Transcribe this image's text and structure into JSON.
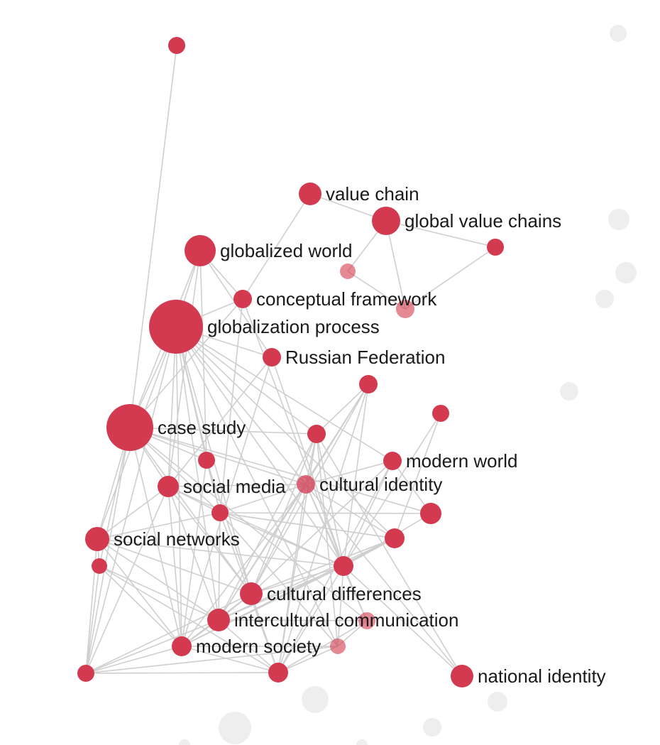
{
  "colors": {
    "node": "#d33a4f",
    "edge": "#cfcfcf",
    "ghost": "#eeeeee",
    "label": "#1a1a1a"
  },
  "nodes": {
    "value_chain": "value chain",
    "global_value_chains": "global value chains",
    "globalized_world": "globalized world",
    "conceptual_framework": "conceptual framework",
    "globalization_process": "globalization process",
    "russian_federation": "Russian Federation",
    "case_study": "case study",
    "modern_world": "modern world",
    "social_media": "social media",
    "cultural_identity": "cultural identity",
    "social_networks": "social networks",
    "cultural_differences": "cultural differences",
    "intercultural_communication": "intercultural communication",
    "modern_society": "modern society",
    "national_identity": "national identity"
  }
}
